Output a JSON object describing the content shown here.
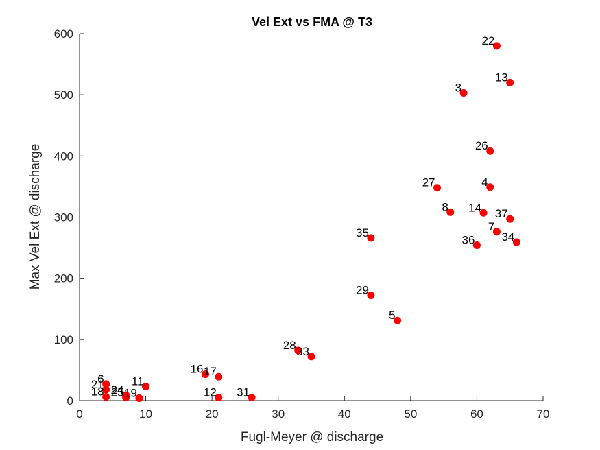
{
  "chart_data": {
    "type": "scatter",
    "title": "Vel Ext vs FMA @ T3",
    "xlabel": "Fugl-Meyer @ discharge",
    "ylabel": "Max Vel Ext @ discharge",
    "xlim": [
      0,
      70
    ],
    "ylim": [
      0,
      600
    ],
    "xticks": [
      "0",
      "10",
      "20",
      "30",
      "40",
      "50",
      "60",
      "70"
    ],
    "yticks": [
      "0",
      "100",
      "200",
      "300",
      "400",
      "500",
      "600"
    ],
    "marker_color": "#ff0000",
    "grid": false,
    "points": [
      {
        "label": "22",
        "x": 63,
        "y": 580
      },
      {
        "label": "13",
        "x": 65,
        "y": 520
      },
      {
        "label": "3",
        "x": 58,
        "y": 503
      },
      {
        "label": "26",
        "x": 62,
        "y": 408
      },
      {
        "label": "27",
        "x": 54,
        "y": 348
      },
      {
        "label": "4",
        "x": 62,
        "y": 349
      },
      {
        "label": "8",
        "x": 56,
        "y": 308
      },
      {
        "label": "14",
        "x": 61,
        "y": 307
      },
      {
        "label": "37",
        "x": 65,
        "y": 297
      },
      {
        "label": "7",
        "x": 63,
        "y": 276
      },
      {
        "label": "35",
        "x": 44,
        "y": 266
      },
      {
        "label": "36",
        "x": 60,
        "y": 254
      },
      {
        "label": "34",
        "x": 66,
        "y": 259
      },
      {
        "label": "29",
        "x": 44,
        "y": 172
      },
      {
        "label": "5",
        "x": 48,
        "y": 131
      },
      {
        "label": "28",
        "x": 33,
        "y": 82
      },
      {
        "label": "33",
        "x": 35,
        "y": 72
      },
      {
        "label": "16",
        "x": 19,
        "y": 43
      },
      {
        "label": "17",
        "x": 21,
        "y": 39
      },
      {
        "label": "11",
        "x": 10,
        "y": 23
      },
      {
        "label": "6",
        "x": 4,
        "y": 27
      },
      {
        "label": "21",
        "x": 4,
        "y": 18
      },
      {
        "label": "18",
        "x": 4,
        "y": 6
      },
      {
        "label": "24",
        "x": 7,
        "y": 9
      },
      {
        "label": "25",
        "x": 7,
        "y": 5
      },
      {
        "label": "19",
        "x": 9,
        "y": 4
      },
      {
        "label": "12",
        "x": 21,
        "y": 5
      },
      {
        "label": "31",
        "x": 26,
        "y": 5
      }
    ]
  }
}
